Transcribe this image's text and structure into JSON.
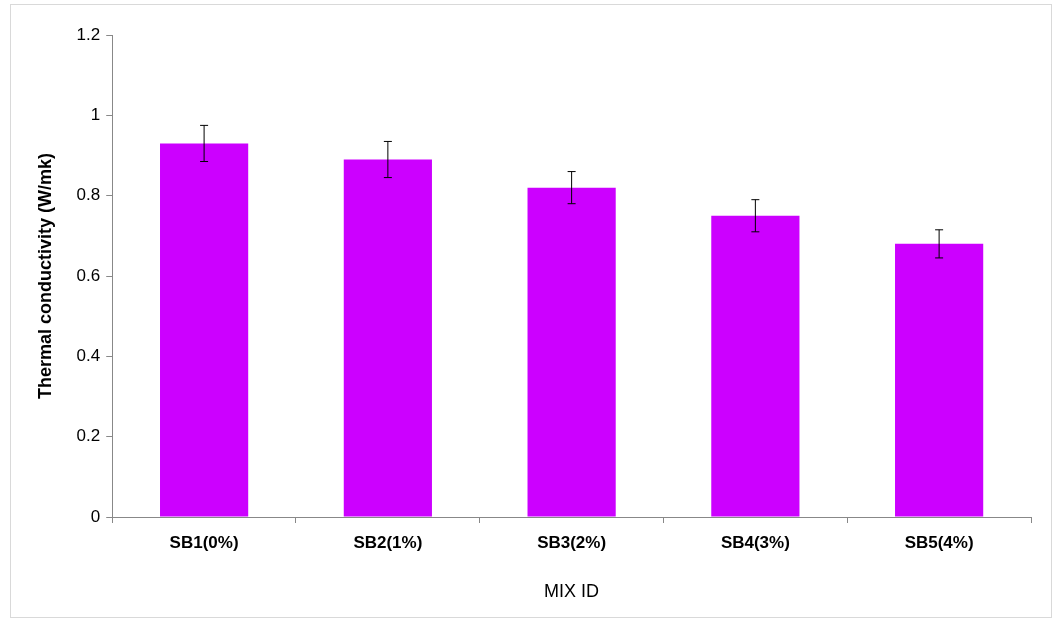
{
  "chart_data": {
    "type": "bar",
    "xlabel": "MIX ID",
    "ylabel": "Thermal conductivity (W/mk)",
    "categories": [
      "SB1(0%)",
      "SB2(1%)",
      "SB3(2%)",
      "SB4(3%)",
      "SB5(4%)"
    ],
    "values": [
      0.93,
      0.89,
      0.82,
      0.75,
      0.68
    ],
    "errors": [
      0.045,
      0.045,
      0.04,
      0.04,
      0.035
    ],
    "color": "#cc00ff",
    "ylim": [
      0,
      1.2
    ],
    "yticks": [
      0,
      0.2,
      0.4,
      0.6,
      0.8,
      1,
      1.2
    ],
    "grid": false,
    "legend": false
  }
}
